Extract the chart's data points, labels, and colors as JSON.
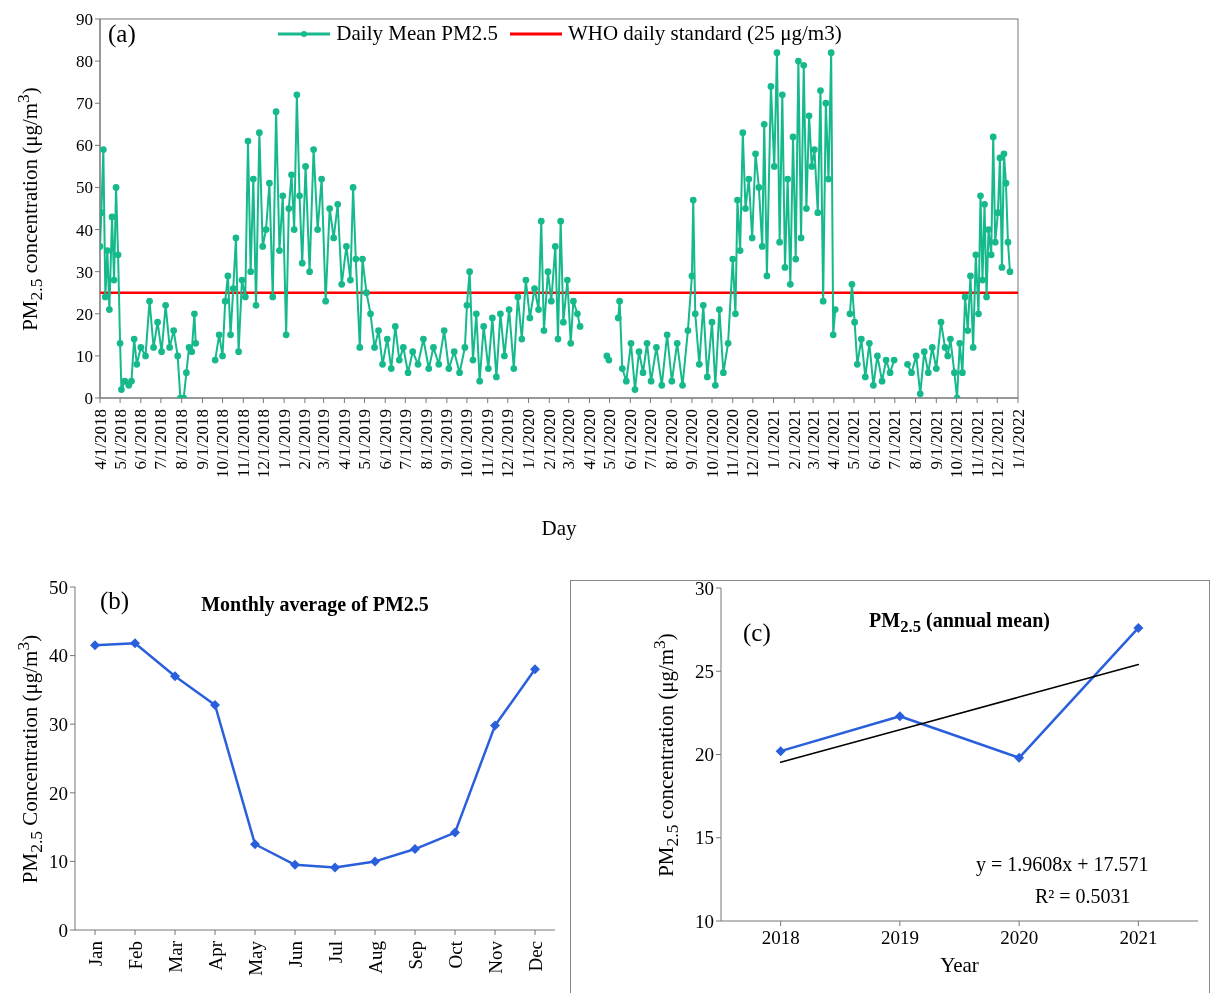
{
  "chart_data": [
    {
      "type": "line",
      "ylabel": "PM$_{2.5}$ concentration (μg/m$^{3}$)",
      "xlabel": "Day",
      "annotations": [
        "(a)"
      ],
      "legend": "top",
      "marker": "circle",
      "x": [
        "2018-04-01",
        "2018-04-03",
        "2018-04-06",
        "2018-04-09",
        "2018-04-12",
        "2018-04-15",
        "2018-04-19",
        "2018-04-22",
        "2018-04-25",
        "2018-04-28",
        "2018-05-01",
        "2018-05-03",
        "2018-05-08",
        "2018-05-14",
        "2018-05-18",
        "2018-05-22",
        "2018-05-26",
        "2018-06-01",
        "2018-06-08",
        "2018-06-14",
        "2018-06-20",
        "2018-06-26",
        "2018-07-02",
        "2018-07-08",
        "2018-07-14",
        "2018-07-20",
        "2018-07-26",
        "2018-07-30",
        "2018-08-04",
        "2018-08-08",
        "2018-08-12",
        "2018-08-16",
        "2018-08-20",
        "2018-08-22",
        "2018-09-05",
        "2018-09-20",
        "2018-09-26",
        "2018-10-01",
        "2018-10-05",
        "2018-10-09",
        "2018-10-13",
        "2018-10-17",
        "2018-10-21",
        "2018-10-25",
        "2018-10-30",
        "2018-11-04",
        "2018-11-08",
        "2018-11-12",
        "2018-11-16",
        "2018-11-20",
        "2018-11-25",
        "2018-11-30",
        "2018-12-05",
        "2018-12-10",
        "2018-12-15",
        "2018-12-20",
        "2018-12-25",
        "2018-12-30",
        "2019-01-04",
        "2019-01-08",
        "2019-01-12",
        "2019-01-16",
        "2019-01-20",
        "2019-01-24",
        "2019-01-28",
        "2019-02-02",
        "2019-02-08",
        "2019-02-14",
        "2019-02-20",
        "2019-02-26",
        "2019-03-04",
        "2019-03-10",
        "2019-03-16",
        "2019-03-22",
        "2019-03-28",
        "2019-04-04",
        "2019-04-10",
        "2019-04-14",
        "2019-04-18",
        "2019-04-24",
        "2019-04-28",
        "2019-05-04",
        "2019-05-10",
        "2019-05-16",
        "2019-05-22",
        "2019-05-28",
        "2019-06-04",
        "2019-06-10",
        "2019-06-16",
        "2019-06-22",
        "2019-06-28",
        "2019-07-05",
        "2019-07-12",
        "2019-07-20",
        "2019-07-28",
        "2019-08-05",
        "2019-08-12",
        "2019-08-20",
        "2019-08-28",
        "2019-09-04",
        "2019-09-12",
        "2019-09-20",
        "2019-09-28",
        "2019-10-01",
        "2019-10-05",
        "2019-10-10",
        "2019-10-15",
        "2019-10-20",
        "2019-10-26",
        "2019-11-02",
        "2019-11-08",
        "2019-11-14",
        "2019-11-20",
        "2019-11-26",
        "2019-12-03",
        "2019-12-10",
        "2019-12-16",
        "2019-12-22",
        "2019-12-28",
        "2020-01-03",
        "2020-01-10",
        "2020-01-16",
        "2020-01-20",
        "2020-01-24",
        "2020-01-30",
        "2020-02-04",
        "2020-02-10",
        "2020-02-14",
        "2020-02-18",
        "2020-02-22",
        "2020-02-28",
        "2020-03-04",
        "2020-03-08",
        "2020-03-14",
        "2020-03-18",
        "2020-04-05",
        "2020-04-27",
        "2020-04-30",
        "2020-05-06",
        "2020-05-14",
        "2020-05-16",
        "2020-05-20",
        "2020-05-26",
        "2020-06-02",
        "2020-06-08",
        "2020-06-14",
        "2020-06-20",
        "2020-06-26",
        "2020-07-02",
        "2020-07-10",
        "2020-07-18",
        "2020-07-26",
        "2020-08-02",
        "2020-08-10",
        "2020-08-18",
        "2020-08-26",
        "2020-09-01",
        "2020-09-03",
        "2020-09-06",
        "2020-09-12",
        "2020-09-18",
        "2020-09-24",
        "2020-10-01",
        "2020-10-06",
        "2020-10-12",
        "2020-10-18",
        "2020-10-25",
        "2020-11-01",
        "2020-11-05",
        "2020-11-08",
        "2020-11-12",
        "2020-11-16",
        "2020-11-20",
        "2020-11-25",
        "2020-11-30",
        "2020-12-05",
        "2020-12-10",
        "2020-12-15",
        "2020-12-18",
        "2020-12-22",
        "2020-12-28",
        "2021-01-02",
        "2021-01-06",
        "2021-01-10",
        "2021-01-14",
        "2021-01-18",
        "2021-01-22",
        "2021-01-26",
        "2021-01-30",
        "2021-02-03",
        "2021-02-07",
        "2021-02-11",
        "2021-02-15",
        "2021-02-19",
        "2021-02-23",
        "2021-02-27",
        "2021-03-03",
        "2021-03-08",
        "2021-03-12",
        "2021-03-16",
        "2021-03-20",
        "2021-03-24",
        "2021-03-28",
        "2021-03-31",
        "2021-04-03",
        "2021-04-14",
        "2021-04-25",
        "2021-04-28",
        "2021-05-02",
        "2021-05-06",
        "2021-05-12",
        "2021-05-18",
        "2021-05-24",
        "2021-05-30",
        "2021-06-05",
        "2021-06-12",
        "2021-06-18",
        "2021-06-24",
        "2021-06-30",
        "2021-07-10",
        "2021-07-20",
        "2021-07-26",
        "2021-08-02",
        "2021-08-08",
        "2021-08-14",
        "2021-08-20",
        "2021-08-26",
        "2021-09-01",
        "2021-09-08",
        "2021-09-14",
        "2021-09-18",
        "2021-09-22",
        "2021-09-28",
        "2021-10-02",
        "2021-10-06",
        "2021-10-10",
        "2021-10-14",
        "2021-10-18",
        "2021-10-22",
        "2021-10-26",
        "2021-10-30",
        "2021-11-03",
        "2021-11-06",
        "2021-11-09",
        "2021-11-12",
        "2021-11-15",
        "2021-11-18",
        "2021-11-22",
        "2021-11-25",
        "2021-11-28",
        "2021-12-02",
        "2021-12-05",
        "2021-12-08",
        "2021-12-11",
        "2021-12-14",
        "2021-12-17",
        "2021-12-20"
      ],
      "series": [
        {
          "name": "Daily Mean PM2.5",
          "color": "#15b98b",
          "values": [
            36,
            44,
            59,
            24,
            35,
            21,
            43,
            28,
            50,
            34,
            13,
            2,
            4,
            3,
            4,
            14,
            8,
            12,
            10,
            23,
            12,
            18,
            11,
            22,
            12,
            16,
            10,
            0,
            0,
            6,
            12,
            11,
            20,
            13,
            null,
            9,
            15,
            10,
            23,
            29,
            15,
            26,
            38,
            11,
            28,
            24,
            61,
            30,
            52,
            22,
            63,
            36,
            40,
            51,
            24,
            68,
            35,
            48,
            15,
            45,
            53,
            40,
            72,
            48,
            32,
            55,
            30,
            59,
            40,
            52,
            23,
            45,
            38,
            46,
            27,
            36,
            28,
            50,
            33,
            12,
            33,
            25,
            20,
            12,
            16,
            8,
            14,
            7,
            17,
            9,
            12,
            6,
            11,
            8,
            14,
            7,
            12,
            8,
            16,
            7,
            11,
            6,
            12,
            22,
            30,
            9,
            20,
            4,
            17,
            7,
            19,
            5,
            20,
            10,
            21,
            7,
            24,
            14,
            28,
            19,
            26,
            21,
            42,
            16,
            30,
            23,
            36,
            14,
            42,
            18,
            28,
            13,
            23,
            20,
            17,
            null,
            10,
            9,
            null,
            19,
            23,
            7,
            4,
            13,
            2,
            11,
            6,
            13,
            4,
            12,
            3,
            15,
            4,
            13,
            3,
            16,
            29,
            47,
            20,
            8,
            22,
            5,
            18,
            3,
            21,
            6,
            13,
            33,
            20,
            47,
            35,
            63,
            45,
            52,
            38,
            58,
            50,
            36,
            65,
            29,
            74,
            55,
            82,
            37,
            72,
            31,
            52,
            27,
            62,
            33,
            80,
            38,
            79,
            45,
            67,
            55,
            59,
            44,
            73,
            23,
            70,
            52,
            82,
            15,
            21,
            null,
            20,
            27,
            18,
            8,
            14,
            5,
            13,
            3,
            10,
            4,
            9,
            6,
            9,
            null,
            8,
            6,
            10,
            1,
            11,
            6,
            12,
            7,
            18,
            12,
            10,
            14,
            6,
            0,
            13,
            6,
            24,
            16,
            29,
            12,
            34,
            20,
            48,
            28,
            46,
            24,
            40,
            34,
            62,
            37,
            44,
            57,
            31,
            58,
            51,
            37,
            30
          ]
        }
      ],
      "ref_lines": [
        {
          "axis": "y",
          "value": 25,
          "label": "WHO daily standard (25 μg/m3)",
          "color": "#ff0000"
        }
      ],
      "xlim": [
        "2018-04-01",
        "2022-01-01"
      ],
      "xticks": [
        {
          "value": "2018-04-01",
          "label": "4/1/2018"
        },
        {
          "value": "2018-05-01",
          "label": "5/1/2018"
        },
        {
          "value": "2018-06-01",
          "label": "6/1/2018"
        },
        {
          "value": "2018-07-01",
          "label": "7/1/2018"
        },
        {
          "value": "2018-08-01",
          "label": "8/1/2018"
        },
        {
          "value": "2018-09-01",
          "label": "9/1/2018"
        },
        {
          "value": "2018-10-01",
          "label": "10/1/2018"
        },
        {
          "value": "2018-11-01",
          "label": "11/1/2018"
        },
        {
          "value": "2018-12-01",
          "label": "12/1/2018"
        },
        {
          "value": "2019-01-01",
          "label": "1/1/2019"
        },
        {
          "value": "2019-02-01",
          "label": "2/1/2019"
        },
        {
          "value": "2019-03-01",
          "label": "3/1/2019"
        },
        {
          "value": "2019-04-01",
          "label": "4/1/2019"
        },
        {
          "value": "2019-05-01",
          "label": "5/1/2019"
        },
        {
          "value": "2019-06-01",
          "label": "6/1/2019"
        },
        {
          "value": "2019-07-01",
          "label": "7/1/2019"
        },
        {
          "value": "2019-08-01",
          "label": "8/1/2019"
        },
        {
          "value": "2019-09-01",
          "label": "9/1/2019"
        },
        {
          "value": "2019-10-01",
          "label": "10/1/2019"
        },
        {
          "value": "2019-11-01",
          "label": "11/1/2019"
        },
        {
          "value": "2019-12-01",
          "label": "12/1/2019"
        },
        {
          "value": "2020-01-01",
          "label": "1/1/2020"
        },
        {
          "value": "2020-02-01",
          "label": "2/1/2020"
        },
        {
          "value": "2020-03-01",
          "label": "3/1/2020"
        },
        {
          "value": "2020-04-01",
          "label": "4/1/2020"
        },
        {
          "value": "2020-05-01",
          "label": "5/1/2020"
        },
        {
          "value": "2020-06-01",
          "label": "6/1/2020"
        },
        {
          "value": "2020-07-01",
          "label": "7/1/2020"
        },
        {
          "value": "2020-08-01",
          "label": "8/1/2020"
        },
        {
          "value": "2020-09-01",
          "label": "9/1/2020"
        },
        {
          "value": "2020-10-01",
          "label": "10/1/2020"
        },
        {
          "value": "2020-11-01",
          "label": "11/1/2020"
        },
        {
          "value": "2020-12-01",
          "label": "12/1/2020"
        },
        {
          "value": "2021-01-01",
          "label": "1/1/2021"
        },
        {
          "value": "2021-02-01",
          "label": "2/1/2021"
        },
        {
          "value": "2021-03-01",
          "label": "3/1/2021"
        },
        {
          "value": "2021-04-01",
          "label": "4/1/2021"
        },
        {
          "value": "2021-05-01",
          "label": "5/1/2021"
        },
        {
          "value": "2021-06-01",
          "label": "6/1/2021"
        },
        {
          "value": "2021-07-01",
          "label": "7/1/2021"
        },
        {
          "value": "2021-08-01",
          "label": "8/1/2021"
        },
        {
          "value": "2021-09-01",
          "label": "9/1/2021"
        },
        {
          "value": "2021-10-01",
          "label": "10/1/2021"
        },
        {
          "value": "2021-11-01",
          "label": "11/1/2021"
        },
        {
          "value": "2021-12-01",
          "label": "12/1/2021"
        },
        {
          "value": "2022-01-01",
          "label": "1/1/2022"
        }
      ],
      "ylim": [
        0,
        90
      ],
      "yticks": [
        0,
        10,
        20,
        30,
        40,
        50,
        60,
        70,
        80,
        90
      ]
    },
    {
      "type": "line",
      "title": "Monthly average of PM2.5",
      "ylabel": "PM$_{2.5}$ Concentration (μg/m$^{3}$)",
      "annotations": [
        "(b)"
      ],
      "marker": "diamond",
      "categories": [
        "Jan",
        "Feb",
        "Mar",
        "Apr",
        "May",
        "Jun",
        "Jul",
        "Aug",
        "Sep",
        "Oct",
        "Nov",
        "Dec"
      ],
      "series": [
        {
          "color": "#2a5fdc",
          "values": [
            41.5,
            41.8,
            37,
            32.8,
            12.5,
            9.5,
            9.1,
            10,
            11.8,
            14.2,
            29.8,
            38
          ]
        }
      ],
      "ylim": [
        0,
        50
      ],
      "yticks": [
        0,
        10,
        20,
        30,
        40,
        50
      ]
    },
    {
      "type": "line",
      "title": "PM$_{2.5}$ (annual mean)",
      "xlabel": "Year",
      "ylabel": "PM$_{2.5}$ concentration (μg/m$^{3}$)",
      "annotations": [
        "(c)",
        "y = 1.9608x + 17.571",
        "R² = 0.5031"
      ],
      "marker": "diamond",
      "categories": [
        "2018",
        "2019",
        "2020",
        "2021"
      ],
      "series": [
        {
          "color": "#2a5fdc",
          "values": [
            20.2,
            22.3,
            19.8,
            27.6
          ]
        },
        {
          "type": "line",
          "color": "#000000",
          "marker": "none",
          "values": [
            19.53,
            21.49,
            23.45,
            25.41
          ]
        }
      ],
      "ylim": [
        10,
        30
      ],
      "yticks": [
        10,
        15,
        20,
        25,
        30
      ]
    }
  ]
}
